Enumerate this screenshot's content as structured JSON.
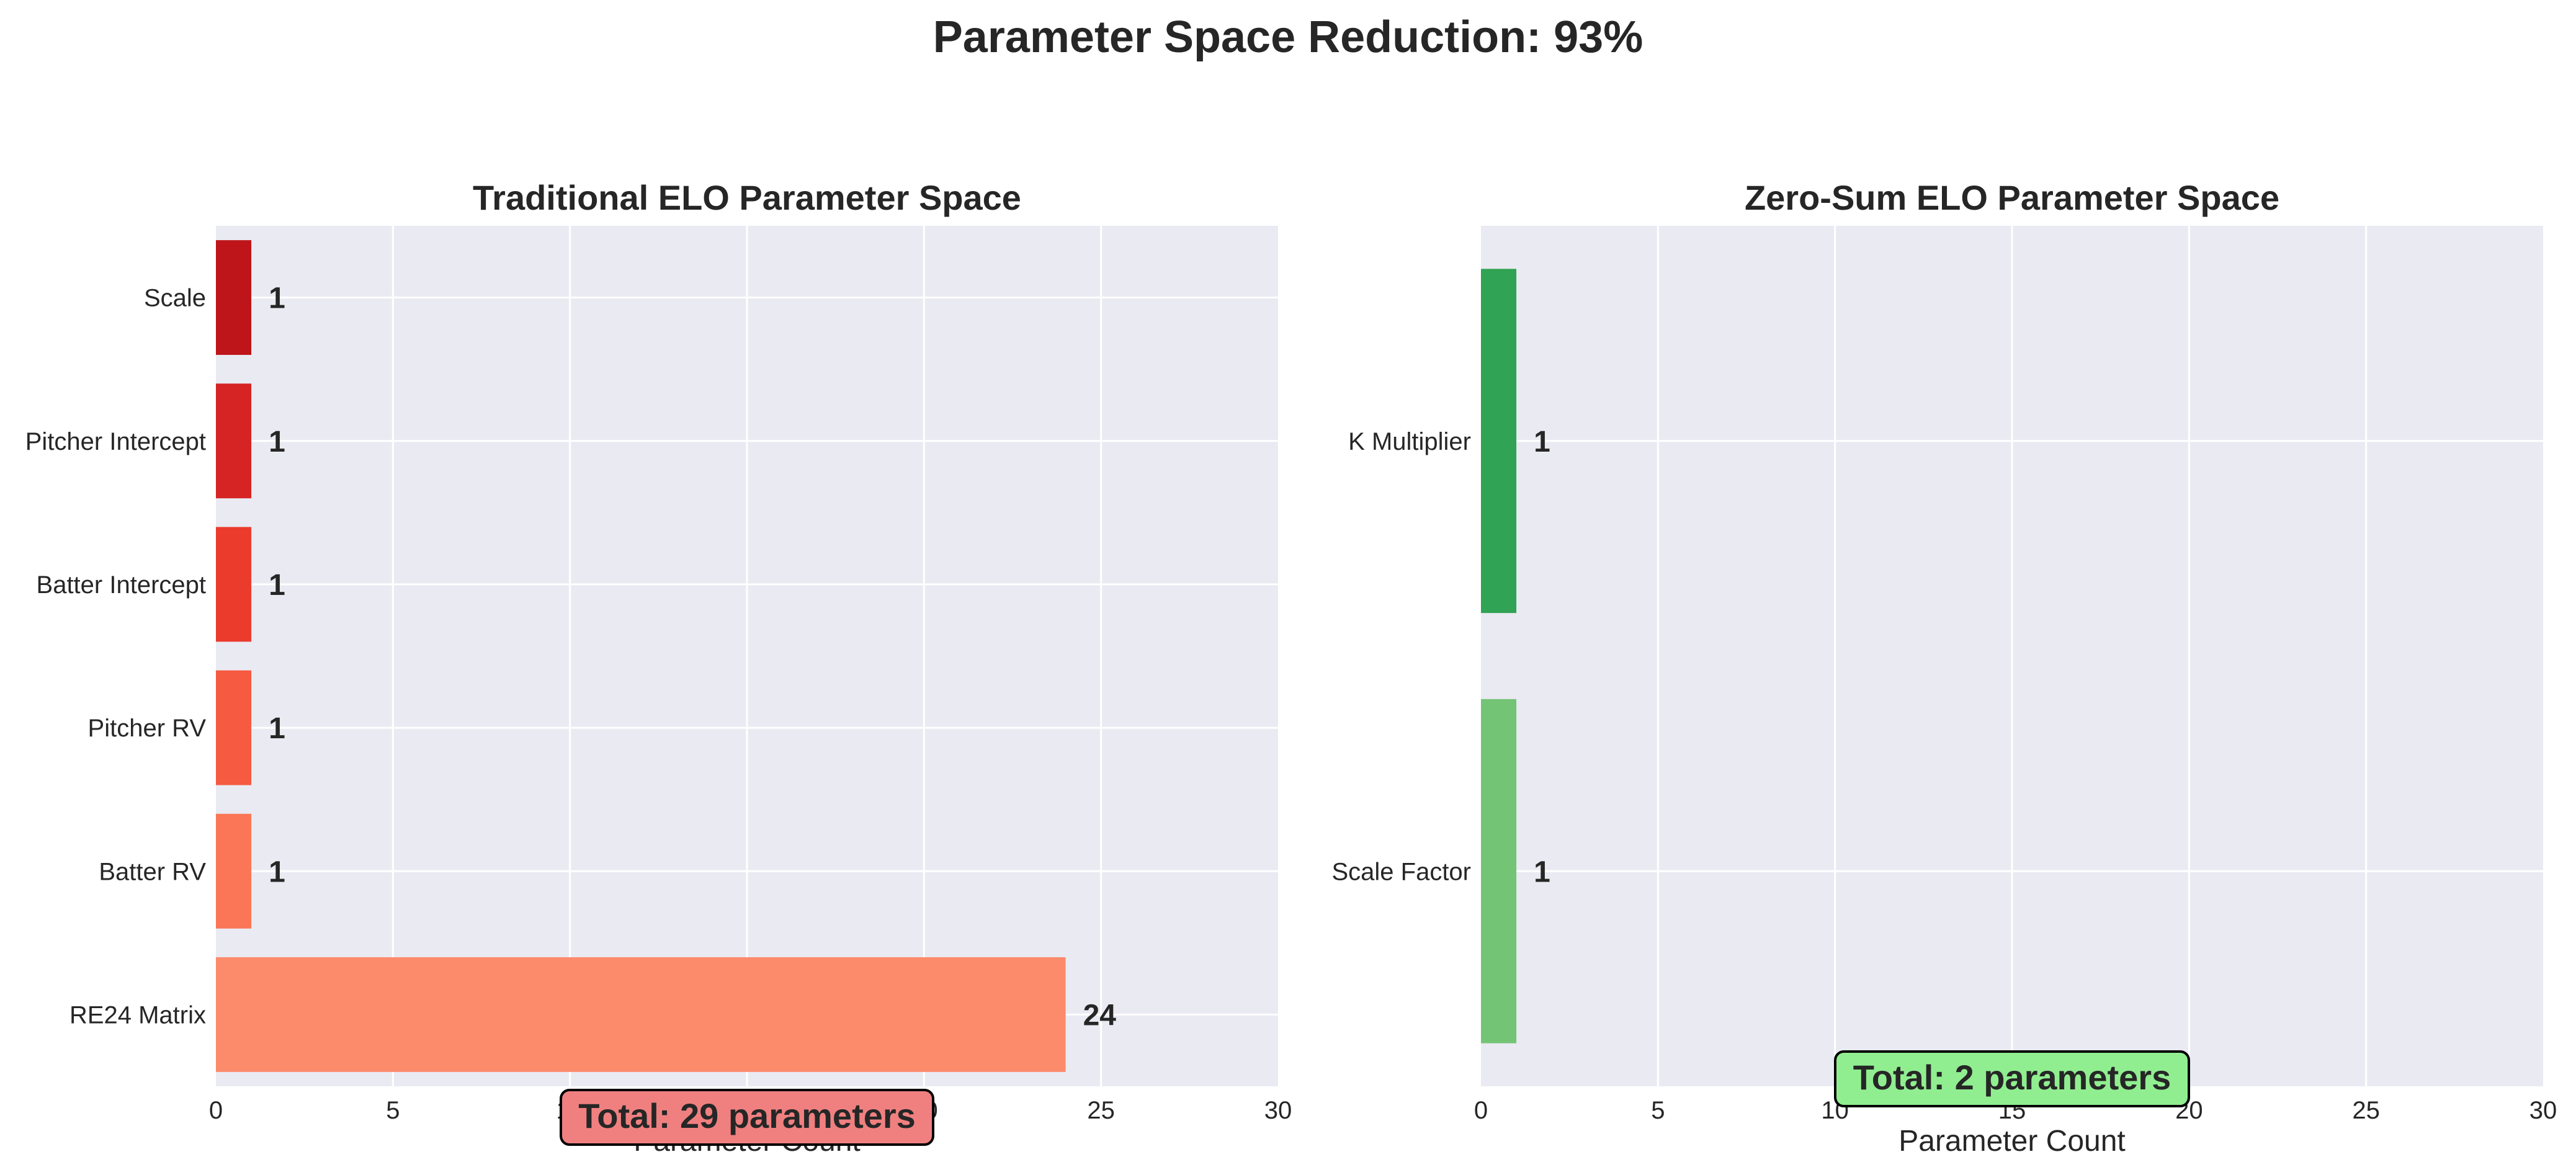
{
  "suptitle": "Parameter Space Reduction: 93%",
  "chart_data": [
    {
      "type": "bar",
      "orientation": "horizontal",
      "title": "Traditional ELO Parameter Space",
      "xlabel": "Parameter Count",
      "ylabel": "",
      "xlim": [
        0,
        30
      ],
      "xticks": [
        0,
        5,
        10,
        15,
        20,
        25,
        30
      ],
      "categories": [
        "RE24 Matrix",
        "Batter RV",
        "Pitcher RV",
        "Batter Intercept",
        "Pitcher Intercept",
        "Scale"
      ],
      "values": [
        24,
        1,
        1,
        1,
        1,
        1
      ],
      "colors": [
        "#fc8b6c",
        "#fb7656",
        "#f65a41",
        "#eb3b2d",
        "#d62424",
        "#bd1519"
      ],
      "value_labels": [
        "24",
        "1",
        "1",
        "1",
        "1",
        "1"
      ],
      "grid": true,
      "background": "#eaeaf2",
      "annotation": {
        "text": "Total: 29 parameters",
        "facecolor": "#f08080",
        "x": 15,
        "y_anchor": "bottom"
      }
    },
    {
      "type": "bar",
      "orientation": "horizontal",
      "title": "Zero-Sum ELO Parameter Space",
      "xlabel": "Parameter Count",
      "ylabel": "",
      "xlim": [
        0,
        30
      ],
      "xticks": [
        0,
        5,
        10,
        15,
        20,
        25,
        30
      ],
      "categories": [
        "Scale Factor",
        "K Multiplier"
      ],
      "values": [
        1,
        1
      ],
      "colors": [
        "#74c476",
        "#31a354"
      ],
      "value_labels": [
        "1",
        "1"
      ],
      "grid": true,
      "background": "#eaeaf2",
      "annotation": {
        "text": "Total: 2 parameters",
        "facecolor": "#90ee90",
        "x": 15,
        "y_anchor": "bottom"
      }
    }
  ]
}
